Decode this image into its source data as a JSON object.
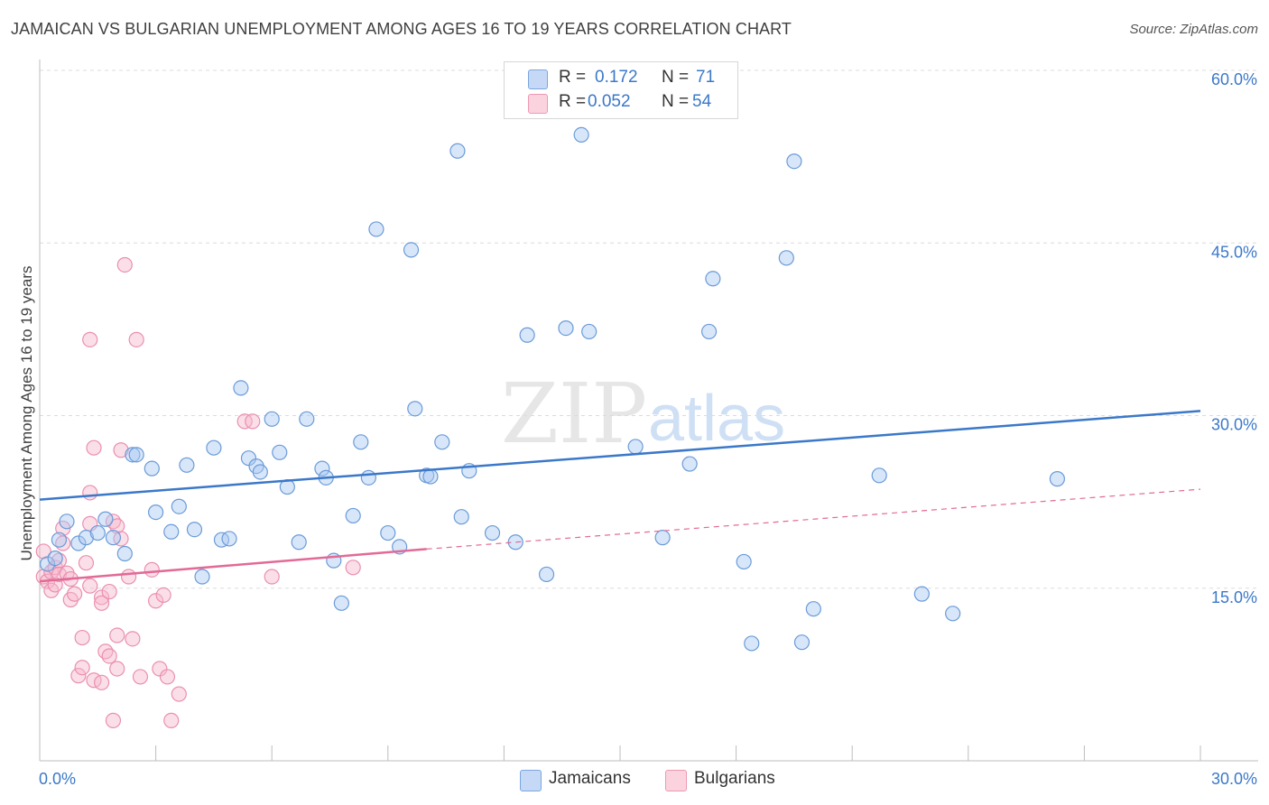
{
  "title": "JAMAICAN VS BULGARIAN UNEMPLOYMENT AMONG AGES 16 TO 19 YEARS CORRELATION CHART",
  "source": "Source: ZipAtlas.com",
  "watermark": {
    "zip": "ZIP",
    "atlas": "atlas"
  },
  "legend_top": {
    "rows": [
      {
        "r_label": "R =",
        "r_value": "0.172",
        "n_label": "N =",
        "n_value": "71",
        "color": "#a9c8f2"
      },
      {
        "r_label": "R =",
        "r_value": "0.052",
        "n_label": "N =",
        "n_value": "54",
        "color": "#f6b8cb"
      }
    ]
  },
  "legend_bottom": [
    {
      "label": "Jamaicans",
      "color": "#a9c8f2"
    },
    {
      "label": "Bulgarians",
      "color": "#f6b8cb"
    }
  ],
  "chart_data": {
    "type": "scatter",
    "title": "JAMAICAN VS BULGARIAN UNEMPLOYMENT AMONG AGES 16 TO 19 YEARS CORRELATION CHART",
    "xlabel": "",
    "ylabel": "Unemployment Among Ages 16 to 19 years",
    "xlim": [
      0,
      30
    ],
    "ylim": [
      0,
      60
    ],
    "x_tick_labels": [
      "0.0%",
      "30.0%"
    ],
    "y_tick_labels": [
      "15.0%",
      "30.0%",
      "45.0%",
      "60.0%"
    ],
    "y_ticks": [
      15,
      30,
      45,
      60
    ],
    "x_minor_ticks": [
      3,
      6,
      9,
      12,
      15,
      18,
      21,
      24,
      27,
      30
    ],
    "grid": true,
    "legend_position": "top-center",
    "colors": {
      "blue": "#3b78c9",
      "pink": "#e26a96",
      "blue_fill": "#a9c8f2",
      "pink_fill": "#f6b8cb"
    },
    "series": [
      {
        "name": "Jamaicans",
        "points": [
          [
            0.2,
            17.1
          ],
          [
            0.4,
            17.6
          ],
          [
            0.5,
            19.2
          ],
          [
            0.7,
            20.8
          ],
          [
            1.0,
            18.9
          ],
          [
            1.2,
            19.4
          ],
          [
            1.5,
            19.8
          ],
          [
            1.7,
            21.0
          ],
          [
            1.9,
            19.4
          ],
          [
            2.2,
            18.0
          ],
          [
            2.4,
            26.6
          ],
          [
            2.5,
            26.6
          ],
          [
            2.9,
            25.4
          ],
          [
            3.0,
            21.6
          ],
          [
            3.4,
            19.9
          ],
          [
            3.6,
            22.1
          ],
          [
            3.8,
            25.7
          ],
          [
            4.0,
            20.1
          ],
          [
            4.2,
            16.0
          ],
          [
            4.5,
            27.2
          ],
          [
            4.7,
            19.2
          ],
          [
            4.9,
            19.3
          ],
          [
            5.2,
            32.4
          ],
          [
            5.4,
            26.3
          ],
          [
            5.6,
            25.6
          ],
          [
            5.7,
            25.1
          ],
          [
            6.0,
            29.7
          ],
          [
            6.2,
            26.8
          ],
          [
            6.4,
            23.8
          ],
          [
            6.7,
            19.0
          ],
          [
            6.9,
            29.7
          ],
          [
            7.3,
            25.4
          ],
          [
            7.4,
            24.6
          ],
          [
            7.6,
            17.4
          ],
          [
            7.8,
            13.7
          ],
          [
            8.1,
            21.3
          ],
          [
            8.3,
            27.7
          ],
          [
            8.5,
            24.6
          ],
          [
            8.7,
            46.2
          ],
          [
            9.0,
            19.8
          ],
          [
            9.3,
            18.6
          ],
          [
            9.6,
            44.4
          ],
          [
            9.7,
            30.6
          ],
          [
            10.0,
            24.8
          ],
          [
            10.1,
            24.7
          ],
          [
            10.4,
            27.7
          ],
          [
            10.8,
            53.0
          ],
          [
            10.9,
            21.2
          ],
          [
            11.1,
            25.2
          ],
          [
            11.7,
            19.8
          ],
          [
            12.3,
            19.0
          ],
          [
            12.6,
            37.0
          ],
          [
            13.1,
            16.2
          ],
          [
            13.6,
            37.6
          ],
          [
            14.0,
            54.4
          ],
          [
            14.2,
            37.3
          ],
          [
            15.4,
            27.3
          ],
          [
            16.1,
            19.4
          ],
          [
            16.8,
            25.8
          ],
          [
            17.3,
            37.3
          ],
          [
            17.4,
            41.9
          ],
          [
            18.2,
            17.3
          ],
          [
            18.4,
            10.2
          ],
          [
            19.3,
            43.7
          ],
          [
            19.5,
            52.1
          ],
          [
            19.7,
            10.3
          ],
          [
            20.0,
            13.2
          ],
          [
            21.7,
            24.8
          ],
          [
            22.8,
            14.5
          ],
          [
            23.6,
            12.8
          ],
          [
            26.3,
            24.5
          ]
        ]
      },
      {
        "name": "Bulgarians",
        "points": [
          [
            0.1,
            16.0
          ],
          [
            0.1,
            18.2
          ],
          [
            0.2,
            15.6
          ],
          [
            0.3,
            14.8
          ],
          [
            0.3,
            16.4
          ],
          [
            0.4,
            16.8
          ],
          [
            0.4,
            15.3
          ],
          [
            0.5,
            17.4
          ],
          [
            0.5,
            16.2
          ],
          [
            0.6,
            18.9
          ],
          [
            0.6,
            20.2
          ],
          [
            0.7,
            16.3
          ],
          [
            0.8,
            15.8
          ],
          [
            0.8,
            14.0
          ],
          [
            0.9,
            14.5
          ],
          [
            1.0,
            7.4
          ],
          [
            1.1,
            8.1
          ],
          [
            1.1,
            10.7
          ],
          [
            1.2,
            17.2
          ],
          [
            1.3,
            20.6
          ],
          [
            1.3,
            23.3
          ],
          [
            1.3,
            15.2
          ],
          [
            1.3,
            36.6
          ],
          [
            1.4,
            27.2
          ],
          [
            1.4,
            7.0
          ],
          [
            1.6,
            6.8
          ],
          [
            1.6,
            14.2
          ],
          [
            1.6,
            13.7
          ],
          [
            1.7,
            9.5
          ],
          [
            1.8,
            9.1
          ],
          [
            1.8,
            14.7
          ],
          [
            1.9,
            3.5
          ],
          [
            1.9,
            20.8
          ],
          [
            2.0,
            20.4
          ],
          [
            2.0,
            10.9
          ],
          [
            2.0,
            8.0
          ],
          [
            2.1,
            19.3
          ],
          [
            2.1,
            27.0
          ],
          [
            2.2,
            43.1
          ],
          [
            2.3,
            16.0
          ],
          [
            2.4,
            10.6
          ],
          [
            2.5,
            36.6
          ],
          [
            2.6,
            7.3
          ],
          [
            2.9,
            16.6
          ],
          [
            3.0,
            13.9
          ],
          [
            3.1,
            8.0
          ],
          [
            3.2,
            14.4
          ],
          [
            3.3,
            7.3
          ],
          [
            3.4,
            3.5
          ],
          [
            3.6,
            5.8
          ],
          [
            5.3,
            29.5
          ],
          [
            5.5,
            29.5
          ],
          [
            6.0,
            16.0
          ],
          [
            8.1,
            16.8
          ]
        ]
      }
    ],
    "trend_lines": [
      {
        "series": "Jamaicans",
        "x": [
          0,
          30
        ],
        "y": [
          22.7,
          30.4
        ],
        "style": "solid"
      },
      {
        "series": "Bulgarians",
        "x": [
          0,
          10
        ],
        "y": [
          15.6,
          18.4
        ],
        "style": "solid"
      },
      {
        "series": "Bulgarians",
        "x": [
          10,
          30
        ],
        "y": [
          18.4,
          23.6
        ],
        "style": "dashed"
      }
    ]
  }
}
